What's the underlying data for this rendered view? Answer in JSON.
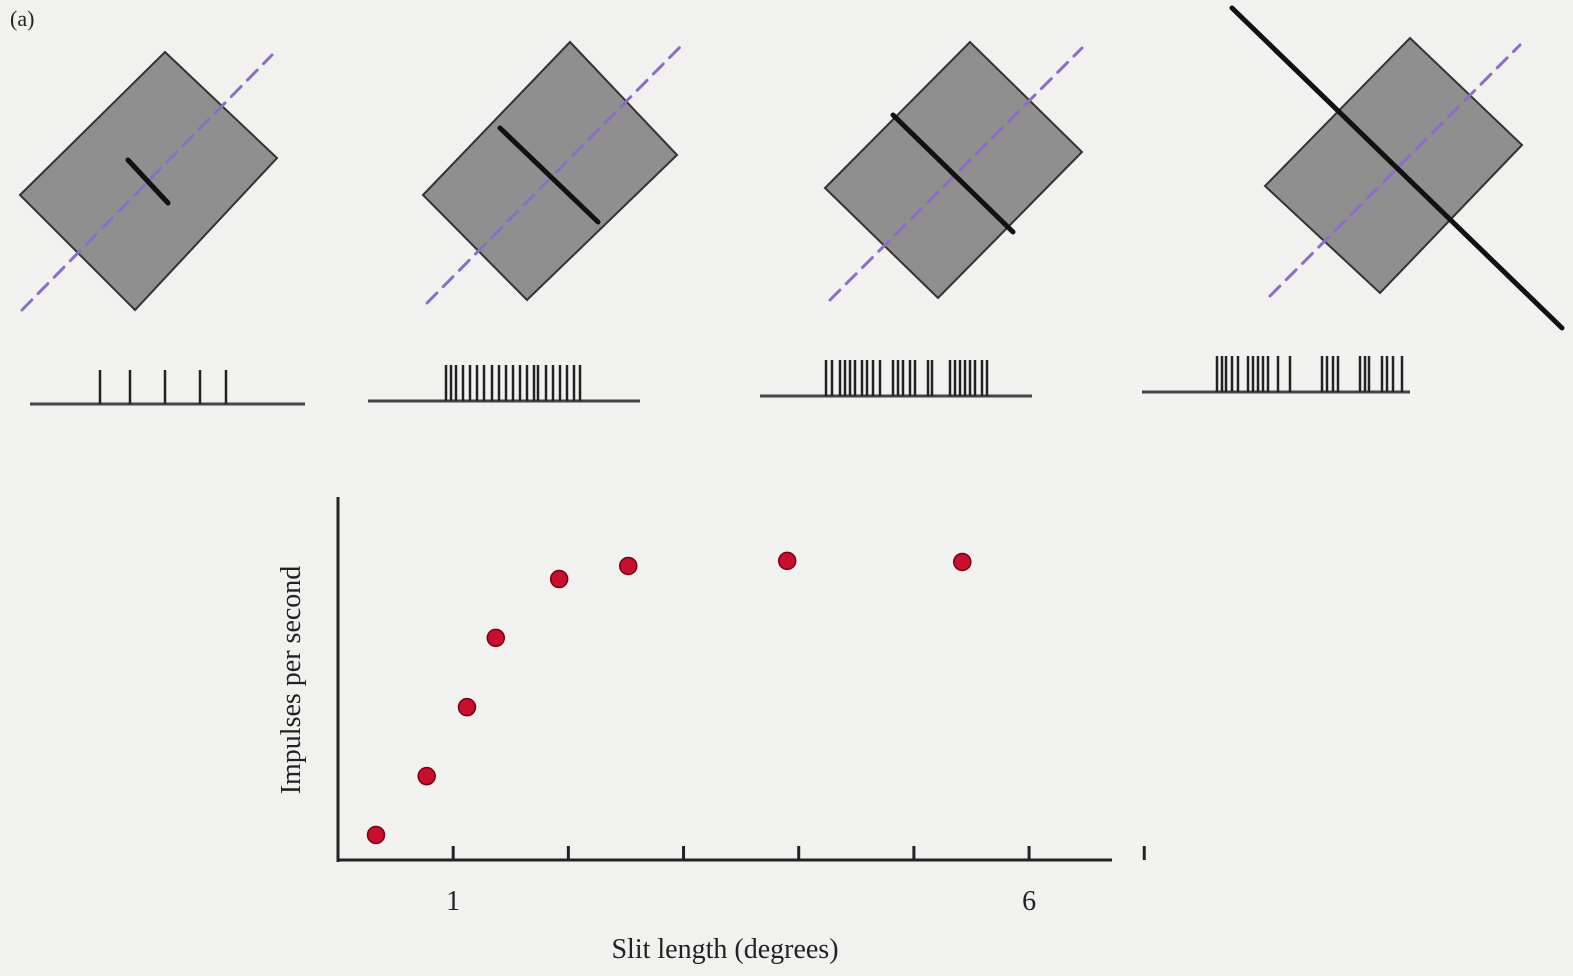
{
  "panel_label": "(a)",
  "chart_data": {
    "type": "scatter",
    "x_label": "Slit length (degrees)",
    "y_label": "Impulses per second",
    "x": [
      0.33,
      0.77,
      1.12,
      1.37,
      1.92,
      2.52,
      3.9,
      5.42
    ],
    "values": [
      6.9,
      23.1,
      42.1,
      61.2,
      77.4,
      81.0,
      82.4,
      82.1
    ],
    "color": "#c8102e",
    "xlim": [
      0,
      6.72
    ],
    "ylim": [
      0,
      100
    ],
    "xticks": [
      1,
      6
    ],
    "xminor_ticks": [
      2,
      3,
      4,
      5,
      7
    ]
  }
}
